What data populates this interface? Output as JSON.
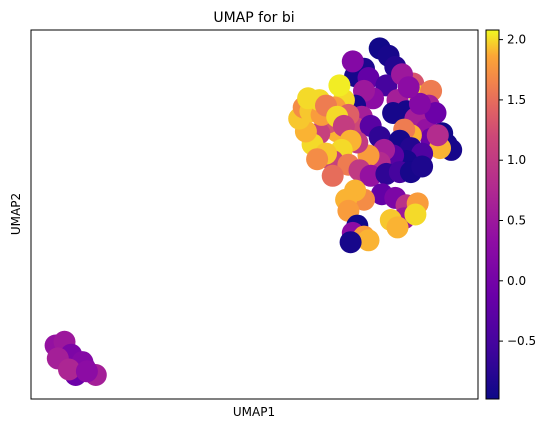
{
  "chart_data": {
    "type": "scatter",
    "title": "UMAP for bi",
    "xlabel": "UMAP1",
    "ylabel": "UMAP2",
    "xticks": false,
    "yticks": false,
    "colormap": "plasma",
    "colorbar": {
      "range": [
        -0.98,
        2.08
      ],
      "ticks": [
        -0.5,
        0.0,
        0.5,
        1.0,
        1.5,
        2.0
      ],
      "tick_labels": [
        "−0.5",
        "0.0",
        "0.5",
        "1.0",
        "1.5",
        "2.0"
      ]
    },
    "xlim": [
      0,
      100
    ],
    "ylim": [
      0,
      100
    ],
    "points": [
      {
        "x": 5.5,
        "y": 14.5,
        "v": 0.4
      },
      {
        "x": 7.5,
        "y": 15.5,
        "v": 0.5
      },
      {
        "x": 9.0,
        "y": 12.0,
        "v": 0.1
      },
      {
        "x": 11.5,
        "y": 10.0,
        "v": 0.2
      },
      {
        "x": 6.0,
        "y": 11.0,
        "v": 0.6
      },
      {
        "x": 10.0,
        "y": 6.5,
        "v": -0.1
      },
      {
        "x": 12.0,
        "y": 8.5,
        "v": 0.2
      },
      {
        "x": 8.5,
        "y": 8.0,
        "v": 0.7
      },
      {
        "x": 14.5,
        "y": 6.5,
        "v": 0.6
      },
      {
        "x": 12.5,
        "y": 7.5,
        "v": 0.3
      },
      {
        "x": 78.0,
        "y": 95.0,
        "v": -0.95
      },
      {
        "x": 80.0,
        "y": 93.0,
        "v": -0.9
      },
      {
        "x": 81.5,
        "y": 90.0,
        "v": -0.8
      },
      {
        "x": 74.5,
        "y": 89.5,
        "v": -0.85
      },
      {
        "x": 72.5,
        "y": 87.5,
        "v": -0.9
      },
      {
        "x": 72.0,
        "y": 91.5,
        "v": 0.2
      },
      {
        "x": 75.5,
        "y": 87.0,
        "v": -0.2
      },
      {
        "x": 79.5,
        "y": 85.0,
        "v": -0.5
      },
      {
        "x": 85.5,
        "y": 85.5,
        "v": 1.3
      },
      {
        "x": 87.0,
        "y": 82.0,
        "v": 2.0
      },
      {
        "x": 82.0,
        "y": 81.0,
        "v": 0.6
      },
      {
        "x": 84.0,
        "y": 78.0,
        "v": -0.9
      },
      {
        "x": 76.5,
        "y": 81.5,
        "v": 0.3
      },
      {
        "x": 74.5,
        "y": 83.5,
        "v": 0.5
      },
      {
        "x": 72.5,
        "y": 79.5,
        "v": -0.9
      },
      {
        "x": 70.0,
        "y": 81.0,
        "v": 2.0
      },
      {
        "x": 68.0,
        "y": 79.0,
        "v": 1.8
      },
      {
        "x": 74.0,
        "y": 76.5,
        "v": 0.6
      },
      {
        "x": 72.5,
        "y": 73.5,
        "v": 1.2
      },
      {
        "x": 76.0,
        "y": 74.0,
        "v": -0.3
      },
      {
        "x": 71.0,
        "y": 77.0,
        "v": 1.4
      },
      {
        "x": 78.0,
        "y": 71.0,
        "v": -0.7
      },
      {
        "x": 81.0,
        "y": 77.5,
        "v": -0.9
      },
      {
        "x": 86.0,
        "y": 76.0,
        "v": 0.6
      },
      {
        "x": 88.5,
        "y": 73.0,
        "v": 0.4
      },
      {
        "x": 92.0,
        "y": 72.0,
        "v": -0.95
      },
      {
        "x": 89.5,
        "y": 70.5,
        "v": -0.1
      },
      {
        "x": 93.0,
        "y": 69.0,
        "v": -0.95
      },
      {
        "x": 94.0,
        "y": 67.5,
        "v": -0.9
      },
      {
        "x": 91.5,
        "y": 68.0,
        "v": 1.9
      },
      {
        "x": 85.0,
        "y": 71.5,
        "v": 1.9
      },
      {
        "x": 83.5,
        "y": 73.0,
        "v": 1.6
      },
      {
        "x": 82.5,
        "y": 70.0,
        "v": -0.9
      },
      {
        "x": 85.0,
        "y": 68.0,
        "v": -0.8
      },
      {
        "x": 87.5,
        "y": 66.5,
        "v": -0.4
      },
      {
        "x": 84.0,
        "y": 64.5,
        "v": -0.9
      },
      {
        "x": 81.0,
        "y": 66.0,
        "v": -0.3
      },
      {
        "x": 79.0,
        "y": 67.5,
        "v": 0.6
      },
      {
        "x": 78.0,
        "y": 64.0,
        "v": 0.8
      },
      {
        "x": 75.5,
        "y": 66.0,
        "v": 1.8
      },
      {
        "x": 73.0,
        "y": 69.5,
        "v": 1.0
      },
      {
        "x": 70.5,
        "y": 70.0,
        "v": 1.6
      },
      {
        "x": 68.5,
        "y": 72.5,
        "v": 1.9
      },
      {
        "x": 66.5,
        "y": 75.0,
        "v": 1.3
      },
      {
        "x": 64.5,
        "y": 72.0,
        "v": 1.1
      },
      {
        "x": 63.0,
        "y": 69.0,
        "v": 2.0
      },
      {
        "x": 61.5,
        "y": 72.5,
        "v": 1.9
      },
      {
        "x": 60.0,
        "y": 76.0,
        "v": 1.95
      },
      {
        "x": 61.0,
        "y": 79.0,
        "v": 1.7
      },
      {
        "x": 62.5,
        "y": 78.0,
        "v": 1.95
      },
      {
        "x": 65.0,
        "y": 77.0,
        "v": 1.8
      },
      {
        "x": 62.0,
        "y": 81.5,
        "v": 2.0
      },
      {
        "x": 64.5,
        "y": 81.0,
        "v": 2.0
      },
      {
        "x": 66.0,
        "y": 79.5,
        "v": 1.6
      },
      {
        "x": 68.5,
        "y": 76.5,
        "v": 2.0
      },
      {
        "x": 70.0,
        "y": 74.0,
        "v": 1.05
      },
      {
        "x": 71.5,
        "y": 70.0,
        "v": 1.9
      },
      {
        "x": 69.5,
        "y": 67.5,
        "v": 2.0
      },
      {
        "x": 67.5,
        "y": 64.5,
        "v": 1.1
      },
      {
        "x": 71.0,
        "y": 63.5,
        "v": 1.6
      },
      {
        "x": 73.5,
        "y": 62.0,
        "v": 1.0
      },
      {
        "x": 76.0,
        "y": 60.5,
        "v": 0.4
      },
      {
        "x": 79.5,
        "y": 61.0,
        "v": -0.7
      },
      {
        "x": 82.5,
        "y": 61.5,
        "v": -0.5
      },
      {
        "x": 85.0,
        "y": 61.5,
        "v": -0.9
      },
      {
        "x": 87.5,
        "y": 63.0,
        "v": -0.85
      },
      {
        "x": 78.5,
        "y": 55.5,
        "v": -0.2
      },
      {
        "x": 81.5,
        "y": 54.5,
        "v": 0.1
      },
      {
        "x": 84.0,
        "y": 52.5,
        "v": 0.9
      },
      {
        "x": 86.5,
        "y": 53.0,
        "v": 1.8
      },
      {
        "x": 83.5,
        "y": 49.0,
        "v": 0.5
      },
      {
        "x": 80.5,
        "y": 48.5,
        "v": 1.95
      },
      {
        "x": 82.0,
        "y": 46.5,
        "v": 1.9
      },
      {
        "x": 86.0,
        "y": 50.0,
        "v": 2.0
      },
      {
        "x": 74.5,
        "y": 54.0,
        "v": 1.7
      },
      {
        "x": 72.5,
        "y": 56.5,
        "v": 1.9
      },
      {
        "x": 70.5,
        "y": 54.0,
        "v": 1.9
      },
      {
        "x": 71.0,
        "y": 51.0,
        "v": 1.8
      },
      {
        "x": 73.0,
        "y": 47.0,
        "v": -0.95
      },
      {
        "x": 72.0,
        "y": 45.0,
        "v": 0.3
      },
      {
        "x": 74.5,
        "y": 44.0,
        "v": 1.8
      },
      {
        "x": 75.5,
        "y": 43.0,
        "v": 1.9
      },
      {
        "x": 71.5,
        "y": 42.5,
        "v": -0.9
      },
      {
        "x": 67.5,
        "y": 60.5,
        "v": 1.5
      },
      {
        "x": 66.0,
        "y": 66.5,
        "v": 1.95
      },
      {
        "x": 64.0,
        "y": 65.0,
        "v": 1.7
      },
      {
        "x": 69.0,
        "y": 85.0,
        "v": 2.05
      },
      {
        "x": 89.5,
        "y": 83.5,
        "v": 1.6
      },
      {
        "x": 89.0,
        "y": 79.5,
        "v": 0.6
      },
      {
        "x": 90.5,
        "y": 77.5,
        "v": -0.1
      },
      {
        "x": 91.0,
        "y": 71.5,
        "v": 0.8
      },
      {
        "x": 87.0,
        "y": 80.0,
        "v": 0.2
      },
      {
        "x": 83.0,
        "y": 88.0,
        "v": 0.5
      },
      {
        "x": 84.5,
        "y": 84.5,
        "v": 0.3
      }
    ]
  }
}
